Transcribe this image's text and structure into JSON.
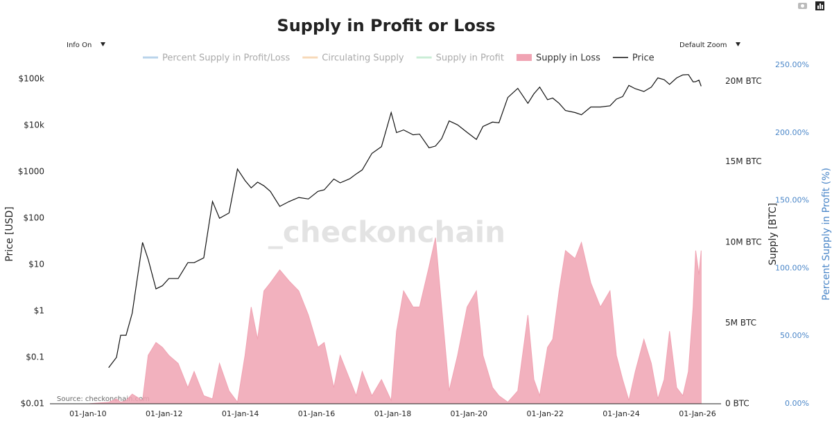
{
  "chart_data": {
    "type": "line-area",
    "title": "Supply in Profit or Loss",
    "controls": {
      "info": "Info On",
      "zoom": "Default Zoom"
    },
    "watermark": "_checkonchain",
    "source": "Source: checkonchain.com",
    "ylabel": "Price [USD]",
    "y2label": "Supply [BTC]",
    "y3label": "Percent Supply in Profit (%)",
    "yscale": "log",
    "ylim": [
      0.01,
      200000
    ],
    "yticks": [
      {
        "value": 0.01,
        "label": "$0.01"
      },
      {
        "value": 0.1,
        "label": "$0.1"
      },
      {
        "value": 1,
        "label": "$1"
      },
      {
        "value": 10,
        "label": "$10"
      },
      {
        "value": 100,
        "label": "$100"
      },
      {
        "value": 1000,
        "label": "$1000"
      },
      {
        "value": 10000,
        "label": "$10k"
      },
      {
        "value": 100000,
        "label": "$100k"
      }
    ],
    "y2lim": [
      0,
      21000000
    ],
    "y2ticks": [
      {
        "value": 0,
        "label": "0 BTC"
      },
      {
        "value": 5000000,
        "label": "5M BTC"
      },
      {
        "value": 10000000,
        "label": "10M BTC"
      },
      {
        "value": 15000000,
        "label": "15M BTC"
      },
      {
        "value": 20000000,
        "label": "20M BTC"
      }
    ],
    "y3lim": [
      0,
      250
    ],
    "y3ticks": [
      {
        "value": 0,
        "label": "0.00%"
      },
      {
        "value": 50,
        "label": "50.00%"
      },
      {
        "value": 100,
        "label": "100.00%"
      },
      {
        "value": 150,
        "label": "150.00%"
      },
      {
        "value": 200,
        "label": "200.00%"
      },
      {
        "value": 250,
        "label": "250.00%"
      }
    ],
    "xlim": [
      "2009-01-01",
      "2026-08-15"
    ],
    "xticks": [
      {
        "value": "2010-01-01",
        "label": "01-Jan-10"
      },
      {
        "value": "2012-01-01",
        "label": "01-Jan-12"
      },
      {
        "value": "2014-01-01",
        "label": "01-Jan-14"
      },
      {
        "value": "2016-01-01",
        "label": "01-Jan-16"
      },
      {
        "value": "2018-01-01",
        "label": "01-Jan-18"
      },
      {
        "value": "2020-01-01",
        "label": "01-Jan-20"
      },
      {
        "value": "2022-01-01",
        "label": "01-Jan-22"
      },
      {
        "value": "2024-01-01",
        "label": "01-Jan-24"
      },
      {
        "value": "2026-01-01",
        "label": "01-Jan-26"
      }
    ],
    "x": [
      "2009-01-03",
      "2009-07-01",
      "2010-01-01",
      "2010-07-18",
      "2010-10-01",
      "2010-11-10",
      "2011-01-01",
      "2011-03-01",
      "2011-06-08",
      "2011-08-01",
      "2011-10-15",
      "2011-12-15",
      "2012-02-15",
      "2012-05-15",
      "2012-08-15",
      "2012-10-15",
      "2013-01-15",
      "2013-04-09",
      "2013-06-15",
      "2013-09-15",
      "2013-12-04",
      "2014-02-15",
      "2014-04-15",
      "2014-06-15",
      "2014-08-15",
      "2014-10-15",
      "2015-01-14",
      "2015-04-15",
      "2015-07-15",
      "2015-10-15",
      "2016-01-15",
      "2016-03-15",
      "2016-06-15",
      "2016-08-15",
      "2016-11-15",
      "2017-01-15",
      "2017-03-15",
      "2017-06-15",
      "2017-09-15",
      "2017-12-17",
      "2018-02-06",
      "2018-04-15",
      "2018-07-15",
      "2018-09-15",
      "2018-12-15",
      "2019-02-15",
      "2019-04-15",
      "2019-06-26",
      "2019-09-15",
      "2019-12-15",
      "2020-03-13",
      "2020-05-15",
      "2020-08-15",
      "2020-10-15",
      "2021-01-08",
      "2021-04-14",
      "2021-07-20",
      "2021-09-15",
      "2021-11-10",
      "2022-01-24",
      "2022-03-15",
      "2022-05-15",
      "2022-07-15",
      "2022-10-15",
      "2022-12-15",
      "2023-03-15",
      "2023-06-15",
      "2023-09-15",
      "2023-11-15",
      "2024-01-15",
      "2024-03-14",
      "2024-05-15",
      "2024-08-05",
      "2024-10-15",
      "2024-12-17",
      "2025-02-15",
      "2025-04-08",
      "2025-06-15",
      "2025-08-14",
      "2025-10-06",
      "2025-11-20",
      "2025-12-15",
      "2026-01-15",
      "2026-02-05"
    ],
    "series": [
      {
        "name": "Percent Supply in Profit/Loss",
        "color": "#a9c9e6",
        "axis": "y3",
        "visible": false
      },
      {
        "name": "Circulating Supply",
        "color": "#f5cfa8",
        "axis": "y2",
        "visible": false
      },
      {
        "name": "Supply in Profit",
        "color": "#bde8cc",
        "axis": "y2",
        "visible": false
      },
      {
        "name": "Supply in Loss",
        "color": "#f0a3b3",
        "axis": "y2",
        "visible": true,
        "kind": "area",
        "values": [
          0,
          0,
          0,
          100000,
          300000,
          100000,
          200000,
          600000,
          200000,
          3000000,
          3800000,
          3500000,
          3000000,
          2500000,
          1000000,
          2000000,
          500000,
          300000,
          2500000,
          800000,
          100000,
          3000000,
          6000000,
          4000000,
          7000000,
          7500000,
          8300000,
          7600000,
          7000000,
          5500000,
          3500000,
          3800000,
          1000000,
          3000000,
          1500000,
          500000,
          2000000,
          500000,
          1500000,
          200000,
          4500000,
          7000000,
          6000000,
          6000000,
          8500000,
          10300000,
          6000000,
          800000,
          3000000,
          6000000,
          7000000,
          3000000,
          1000000,
          500000,
          100000,
          800000,
          5500000,
          1500000,
          500000,
          3500000,
          4000000,
          7000000,
          9500000,
          9000000,
          10000000,
          7500000,
          6000000,
          7000000,
          3000000,
          1500000,
          200000,
          2000000,
          4000000,
          2500000,
          300000,
          1500000,
          4500000,
          1000000,
          500000,
          2000000,
          6000000,
          9500000,
          8000000,
          9500000
        ]
      },
      {
        "name": "Price",
        "color": "#111111",
        "axis": "y",
        "visible": true,
        "kind": "line",
        "values": [
          null,
          null,
          null,
          0.06,
          0.1,
          0.3,
          0.3,
          0.9,
          30,
          13,
          3,
          3.5,
          5,
          5,
          11,
          11,
          14,
          230,
          100,
          130,
          1150,
          650,
          450,
          600,
          500,
          380,
          180,
          230,
          280,
          260,
          380,
          410,
          700,
          580,
          710,
          900,
          1100,
          2500,
          3500,
          19000,
          7000,
          8000,
          6300,
          6500,
          3300,
          3600,
          5200,
          12500,
          10300,
          7100,
          5000,
          9500,
          11800,
          11400,
          40000,
          63000,
          30000,
          48000,
          67000,
          36000,
          39000,
          30000,
          21000,
          19000,
          17000,
          25000,
          25000,
          26500,
          37000,
          42000,
          73000,
          62000,
          54000,
          67000,
          106000,
          97000,
          77000,
          106000,
          123000,
          125000,
          87000,
          88000,
          95000,
          70000
        ]
      }
    ]
  }
}
